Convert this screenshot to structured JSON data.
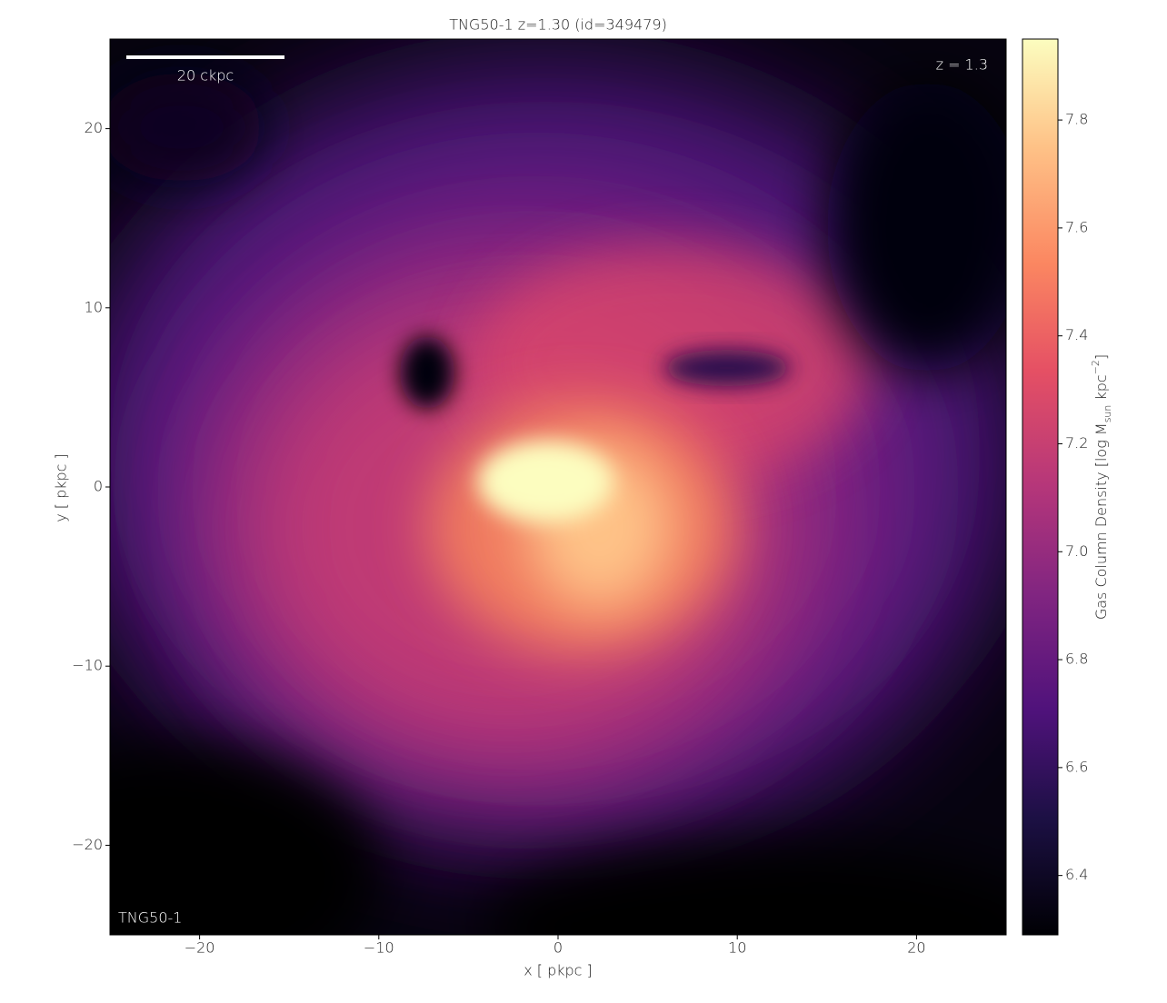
{
  "chart_data": {
    "type": "image",
    "title": "TNG50-1 z=1.30 (id=349479)",
    "xlabel": "x [ pkpc ]",
    "ylabel": "y [ pkpc ]",
    "xlim": [
      -25,
      25
    ],
    "ylim": [
      -25,
      25
    ],
    "xticks": [
      {
        "value": -20,
        "label": "−20"
      },
      {
        "value": -10,
        "label": "−10"
      },
      0,
      10,
      20
    ],
    "yticks": [
      {
        "value": -20,
        "label": "−20"
      },
      {
        "value": -10,
        "label": "−10"
      },
      0,
      10,
      20
    ],
    "colorbar": {
      "label": {
        "text": "Gas Column Density [log M",
        "sub": "sun",
        "mid": " kpc",
        "sup": "−2",
        "end": "]"
      },
      "lim": [
        6.29,
        7.95
      ],
      "ticks": [
        6.4,
        6.6,
        6.8,
        {
          "value": 7,
          "label": "7.0"
        },
        7.2,
        7.4,
        7.6,
        7.8
      ],
      "colormap": "magma"
    },
    "annotations": {
      "scale_bar": "20 ckpc",
      "redshift": "z = 1.3",
      "simulation": "TNG50-1"
    }
  }
}
